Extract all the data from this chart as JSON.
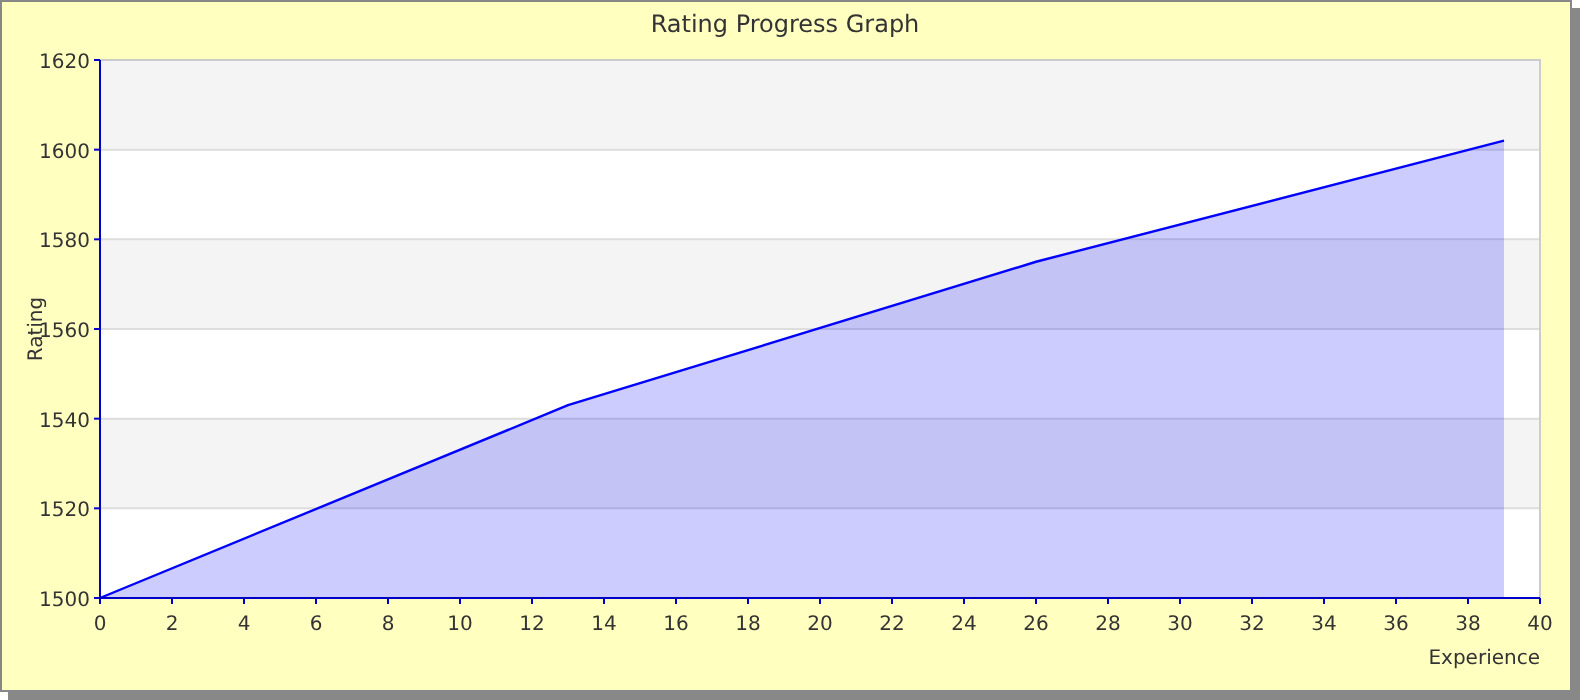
{
  "chart_data": {
    "type": "area",
    "title": "Rating Progress Graph",
    "xlabel": "Experience",
    "ylabel": "Rating",
    "x": [
      0,
      13,
      26,
      39
    ],
    "series": [
      {
        "color": "#0000ff",
        "values": [
          1500,
          1543,
          1575,
          1602
        ]
      }
    ],
    "xlim": [
      0,
      40
    ],
    "xticks": [
      0,
      2,
      4,
      6,
      8,
      10,
      12,
      14,
      16,
      18,
      20,
      22,
      24,
      26,
      28,
      30,
      32,
      34,
      36,
      38,
      40
    ],
    "ylim": [
      1500,
      1620
    ],
    "yticks": [
      1500,
      1520,
      1540,
      1560,
      1580,
      1600,
      1620
    ],
    "grid": "y"
  }
}
